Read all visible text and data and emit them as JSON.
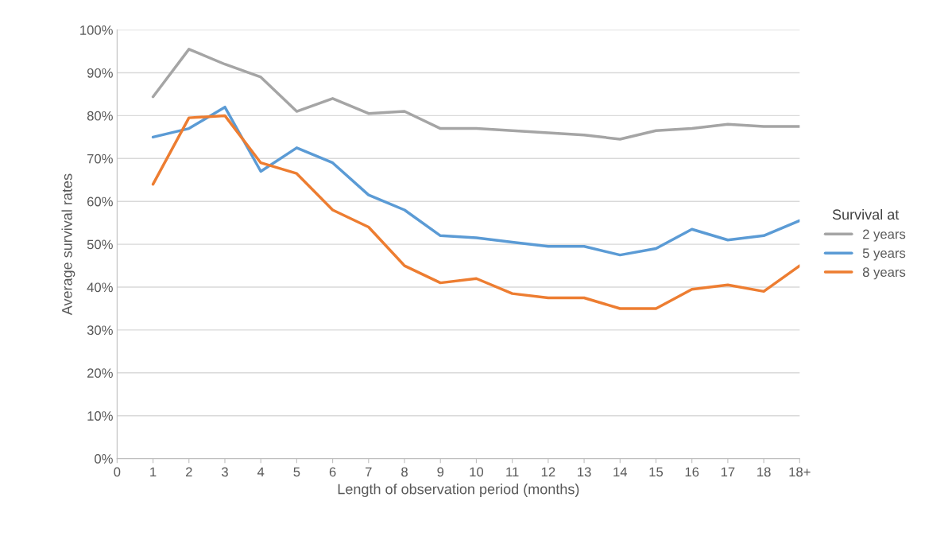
{
  "chart_data": {
    "type": "line",
    "xlabel": "Length of observation period (months)",
    "ylabel": "Average survival rates",
    "legend_title": "Survival at",
    "legend": "right",
    "x": [
      1,
      2,
      3,
      4,
      5,
      6,
      7,
      8,
      9,
      10,
      11,
      12,
      13,
      14,
      15,
      16,
      17,
      18,
      19
    ],
    "series": [
      {
        "name": "2 years",
        "color": "#a5a5a5",
        "values": [
          84.4,
          95.5,
          92,
          89,
          81,
          84,
          80.5,
          81,
          77,
          77,
          76.5,
          76,
          75.5,
          74.5,
          76.5,
          77,
          78,
          77.5,
          77.5
        ]
      },
      {
        "name": "5 years",
        "color": "#5b9bd5",
        "values": [
          75,
          77,
          82,
          67,
          72.5,
          69,
          61.5,
          58,
          52,
          51.5,
          50.5,
          49.5,
          49.5,
          47.5,
          49,
          53.5,
          51,
          52,
          55.5
        ]
      },
      {
        "name": "8 years",
        "color": "#ed7d31",
        "values": [
          64,
          79.5,
          80,
          69,
          66.5,
          58,
          54,
          45,
          41,
          42,
          38.5,
          37.5,
          37.5,
          35,
          35,
          39.5,
          40.5,
          39,
          45
        ]
      }
    ],
    "xlim": [
      0,
      19
    ],
    "xticks": [
      0,
      1,
      2,
      3,
      4,
      5,
      6,
      7,
      8,
      9,
      10,
      11,
      12,
      13,
      14,
      15,
      16,
      17,
      18,
      {
        "value": 19,
        "label": "18+"
      }
    ],
    "ylim": [
      0,
      100
    ],
    "yticks": [
      {
        "value": 0,
        "label": "0%"
      },
      {
        "value": 10,
        "label": "10%"
      },
      {
        "value": 20,
        "label": "20%"
      },
      {
        "value": 30,
        "label": "30%"
      },
      {
        "value": 40,
        "label": "40%"
      },
      {
        "value": 50,
        "label": "50%"
      },
      {
        "value": 60,
        "label": "60%"
      },
      {
        "value": 70,
        "label": "70%"
      },
      {
        "value": 80,
        "label": "80%"
      },
      {
        "value": 90,
        "label": "90%"
      },
      {
        "value": 100,
        "label": "100%"
      }
    ],
    "grid": "y",
    "line_style": "solid",
    "marker": "none"
  }
}
